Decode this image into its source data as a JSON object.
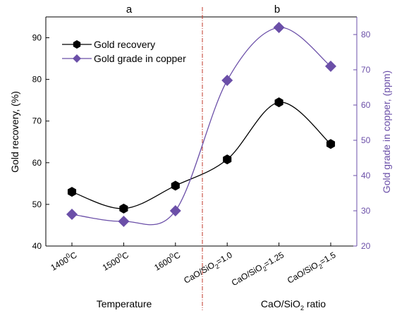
{
  "chart_data": {
    "type": "line",
    "panel_labels": [
      "a",
      "b"
    ],
    "categories": [
      {
        "main": "1400",
        "sup": "0",
        "tail": "C"
      },
      {
        "main": "1500",
        "sup": "0",
        "tail": "C"
      },
      {
        "main": "1600",
        "sup": "0",
        "tail": "C"
      },
      {
        "main": "CaO/SiO",
        "sub": "2",
        "tail": "=1.0"
      },
      {
        "main": "CaO/SiO",
        "sub": "2",
        "tail": "=1.25"
      },
      {
        "main": "CaO/SiO",
        "sub": "2",
        "tail": "=1.5"
      }
    ],
    "xlabel_left": "Temperature",
    "xlabel_right": {
      "main": "CaO/SiO",
      "sub": "2",
      "tail": " ratio"
    },
    "ylabel_left": "Gold recovery, (%)",
    "ylabel_right": "Gold grade in copper, (ppm)",
    "ylim_left": [
      40,
      95
    ],
    "yticks_left": [
      40,
      50,
      60,
      70,
      80,
      90
    ],
    "ylim_right": [
      20,
      85
    ],
    "yticks_right": [
      20,
      30,
      40,
      50,
      60,
      70,
      80
    ],
    "grid": false,
    "legend_position": "top-left",
    "series": [
      {
        "name": "Gold recovery",
        "axis": "left",
        "marker": "hexagon",
        "color": "#000000",
        "values": [
          53.0,
          49.0,
          54.5,
          60.8,
          74.5,
          64.5
        ]
      },
      {
        "name": "Gold grade in copper",
        "axis": "right",
        "marker": "diamond",
        "color": "#6b4fa8",
        "values": [
          29.0,
          27.0,
          30.0,
          67.0,
          82.0,
          71.0
        ]
      }
    ],
    "colors": {
      "accent": "#6b4fa8",
      "divider": "#c0392b",
      "axis": "#000000"
    }
  }
}
